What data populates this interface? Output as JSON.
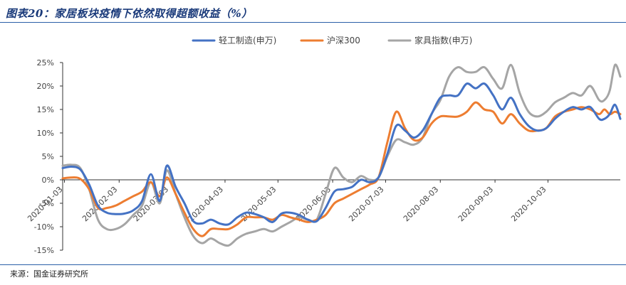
{
  "figure_title": "图表20：家居板块疫情下依然取得超额收益（%）",
  "source_note": "来源：国金证券研究所",
  "colors": {
    "rule": "#2b5fa8",
    "axis": "#333333",
    "title": "#1a3a7a"
  },
  "chart_data": {
    "type": "line",
    "title": "",
    "xlabel": "",
    "ylabel": "",
    "y_unit": "%",
    "ylim": [
      -15,
      25
    ],
    "y_ticks": [
      -15,
      -10,
      -5,
      0,
      5,
      10,
      15,
      20,
      25
    ],
    "y_tick_labels": [
      "-15%",
      "-10%",
      "-5%",
      "0%",
      "5%",
      "10%",
      "15%",
      "20%",
      "25%"
    ],
    "x_range": [
      "2020-01-02",
      "2020-11-13"
    ],
    "x_ticks": [
      "2020-01-03",
      "2020-02-03",
      "2020-03-03",
      "2020-04-03",
      "2020-05-03",
      "2020-06-03",
      "2020-07-03",
      "2020-08-03",
      "2020-09-03",
      "2020-10-03"
    ],
    "legend_position": "top",
    "grid": false,
    "series": [
      {
        "name": "轻工制造(申万)",
        "color": "#4472c4",
        "points": [
          [
            "2020-01-02",
            2.5
          ],
          [
            "2020-01-07",
            2.8
          ],
          [
            "2020-01-12",
            2.2
          ],
          [
            "2020-01-17",
            -1.0
          ],
          [
            "2020-01-22",
            -5.5
          ],
          [
            "2020-01-27",
            -7.0
          ],
          [
            "2020-02-01",
            -7.3
          ],
          [
            "2020-02-06",
            -7.2
          ],
          [
            "2020-02-11",
            -6.5
          ],
          [
            "2020-02-16",
            -4.5
          ],
          [
            "2020-02-21",
            1.2
          ],
          [
            "2020-02-26",
            -4.5
          ],
          [
            "2020-03-01",
            3.0
          ],
          [
            "2020-03-06",
            -1.5
          ],
          [
            "2020-03-11",
            -5.0
          ],
          [
            "2020-03-16",
            -8.8
          ],
          [
            "2020-03-21",
            -9.3
          ],
          [
            "2020-03-26",
            -8.5
          ],
          [
            "2020-03-31",
            -9.3
          ],
          [
            "2020-04-05",
            -9.5
          ],
          [
            "2020-04-10",
            -8.0
          ],
          [
            "2020-04-15",
            -7.0
          ],
          [
            "2020-04-20",
            -7.3
          ],
          [
            "2020-04-25",
            -8.0
          ],
          [
            "2020-04-30",
            -9.0
          ],
          [
            "2020-05-05",
            -7.2
          ],
          [
            "2020-05-10",
            -7.0
          ],
          [
            "2020-05-15",
            -7.5
          ],
          [
            "2020-05-20",
            -8.5
          ],
          [
            "2020-05-25",
            -8.8
          ],
          [
            "2020-05-30",
            -6.0
          ],
          [
            "2020-06-04",
            -2.5
          ],
          [
            "2020-06-09",
            -2.0
          ],
          [
            "2020-06-14",
            -1.5
          ],
          [
            "2020-06-19",
            0.0
          ],
          [
            "2020-06-24",
            -0.5
          ],
          [
            "2020-06-29",
            0.5
          ],
          [
            "2020-07-04",
            5.5
          ],
          [
            "2020-07-09",
            11.5
          ],
          [
            "2020-07-14",
            10.5
          ],
          [
            "2020-07-19",
            9.0
          ],
          [
            "2020-07-24",
            10.5
          ],
          [
            "2020-07-29",
            14.0
          ],
          [
            "2020-08-03",
            17.5
          ],
          [
            "2020-08-08",
            18.0
          ],
          [
            "2020-08-13",
            18.0
          ],
          [
            "2020-08-18",
            20.5
          ],
          [
            "2020-08-23",
            19.5
          ],
          [
            "2020-08-28",
            20.5
          ],
          [
            "2020-09-02",
            18.0
          ],
          [
            "2020-09-07",
            15.0
          ],
          [
            "2020-09-12",
            17.5
          ],
          [
            "2020-09-17",
            14.0
          ],
          [
            "2020-09-22",
            11.5
          ],
          [
            "2020-09-27",
            10.5
          ],
          [
            "2020-10-02",
            11.0
          ],
          [
            "2020-10-07",
            13.0
          ],
          [
            "2020-10-12",
            14.5
          ],
          [
            "2020-10-17",
            15.5
          ],
          [
            "2020-10-22",
            15.0
          ],
          [
            "2020-10-27",
            15.5
          ],
          [
            "2020-11-01",
            13.0
          ],
          [
            "2020-11-04",
            13.0
          ],
          [
            "2020-11-07",
            14.0
          ],
          [
            "2020-11-10",
            16.0
          ],
          [
            "2020-11-13",
            13.0
          ]
        ]
      },
      {
        "name": "沪深300",
        "color": "#ed7d31",
        "points": [
          [
            "2020-01-02",
            0.3
          ],
          [
            "2020-01-07",
            0.5
          ],
          [
            "2020-01-12",
            0.2
          ],
          [
            "2020-01-17",
            -2.0
          ],
          [
            "2020-01-22",
            -6.0
          ],
          [
            "2020-01-27",
            -6.0
          ],
          [
            "2020-02-01",
            -5.5
          ],
          [
            "2020-02-06",
            -4.5
          ],
          [
            "2020-02-11",
            -3.5
          ],
          [
            "2020-02-16",
            -2.5
          ],
          [
            "2020-02-21",
            -0.5
          ],
          [
            "2020-02-26",
            -3.5
          ],
          [
            "2020-03-01",
            0.5
          ],
          [
            "2020-03-06",
            -3.0
          ],
          [
            "2020-03-11",
            -7.0
          ],
          [
            "2020-03-16",
            -10.5
          ],
          [
            "2020-03-21",
            -12.0
          ],
          [
            "2020-03-26",
            -10.5
          ],
          [
            "2020-03-31",
            -10.5
          ],
          [
            "2020-04-05",
            -10.5
          ],
          [
            "2020-04-10",
            -9.5
          ],
          [
            "2020-04-15",
            -8.0
          ],
          [
            "2020-04-20",
            -8.0
          ],
          [
            "2020-04-25",
            -8.0
          ],
          [
            "2020-04-30",
            -8.5
          ],
          [
            "2020-05-05",
            -7.5
          ],
          [
            "2020-05-10",
            -8.0
          ],
          [
            "2020-05-15",
            -8.5
          ],
          [
            "2020-05-20",
            -9.0
          ],
          [
            "2020-05-25",
            -8.5
          ],
          [
            "2020-05-30",
            -7.5
          ],
          [
            "2020-06-04",
            -5.0
          ],
          [
            "2020-06-09",
            -4.0
          ],
          [
            "2020-06-14",
            -3.0
          ],
          [
            "2020-06-19",
            -2.0
          ],
          [
            "2020-06-24",
            -1.0
          ],
          [
            "2020-06-29",
            0.5
          ],
          [
            "2020-07-04",
            8.0
          ],
          [
            "2020-07-09",
            14.5
          ],
          [
            "2020-07-14",
            11.0
          ],
          [
            "2020-07-19",
            8.5
          ],
          [
            "2020-07-24",
            9.0
          ],
          [
            "2020-07-29",
            12.0
          ],
          [
            "2020-08-03",
            13.5
          ],
          [
            "2020-08-08",
            13.5
          ],
          [
            "2020-08-13",
            13.5
          ],
          [
            "2020-08-18",
            14.5
          ],
          [
            "2020-08-23",
            16.5
          ],
          [
            "2020-08-28",
            15.0
          ],
          [
            "2020-09-02",
            14.5
          ],
          [
            "2020-09-07",
            12.0
          ],
          [
            "2020-09-12",
            14.0
          ],
          [
            "2020-09-17",
            12.0
          ],
          [
            "2020-09-22",
            10.5
          ],
          [
            "2020-09-27",
            10.5
          ],
          [
            "2020-10-02",
            11.0
          ],
          [
            "2020-10-07",
            13.5
          ],
          [
            "2020-10-12",
            14.5
          ],
          [
            "2020-10-17",
            15.0
          ],
          [
            "2020-10-22",
            15.5
          ],
          [
            "2020-10-27",
            15.0
          ],
          [
            "2020-11-01",
            14.0
          ],
          [
            "2020-11-04",
            15.0
          ],
          [
            "2020-11-07",
            14.0
          ],
          [
            "2020-11-10",
            14.5
          ],
          [
            "2020-11-13",
            14.0
          ]
        ]
      },
      {
        "name": "家具指数(申万)",
        "color": "#a5a5a5",
        "points": [
          [
            "2020-01-02",
            3.0
          ],
          [
            "2020-01-07",
            3.2
          ],
          [
            "2020-01-12",
            2.5
          ],
          [
            "2020-01-17",
            -2.0
          ],
          [
            "2020-01-22",
            -8.5
          ],
          [
            "2020-01-27",
            -10.5
          ],
          [
            "2020-02-01",
            -10.5
          ],
          [
            "2020-02-06",
            -9.5
          ],
          [
            "2020-02-11",
            -7.5
          ],
          [
            "2020-02-16",
            -5.5
          ],
          [
            "2020-02-21",
            -0.5
          ],
          [
            "2020-02-26",
            -5.0
          ],
          [
            "2020-03-01",
            2.0
          ],
          [
            "2020-03-06",
            -3.0
          ],
          [
            "2020-03-11",
            -8.0
          ],
          [
            "2020-03-16",
            -12.0
          ],
          [
            "2020-03-21",
            -13.5
          ],
          [
            "2020-03-26",
            -12.5
          ],
          [
            "2020-03-31",
            -13.5
          ],
          [
            "2020-04-05",
            -14.0
          ],
          [
            "2020-04-10",
            -12.5
          ],
          [
            "2020-04-15",
            -11.5
          ],
          [
            "2020-04-20",
            -11.0
          ],
          [
            "2020-04-25",
            -10.5
          ],
          [
            "2020-04-30",
            -11.0
          ],
          [
            "2020-05-05",
            -10.0
          ],
          [
            "2020-05-10",
            -9.0
          ],
          [
            "2020-05-15",
            -8.0
          ],
          [
            "2020-05-20",
            -8.5
          ],
          [
            "2020-05-25",
            -8.5
          ],
          [
            "2020-05-30",
            -3.0
          ],
          [
            "2020-06-04",
            2.5
          ],
          [
            "2020-06-09",
            0.5
          ],
          [
            "2020-06-14",
            -0.5
          ],
          [
            "2020-06-19",
            0.8
          ],
          [
            "2020-06-24",
            0.0
          ],
          [
            "2020-06-29",
            0.5
          ],
          [
            "2020-07-04",
            5.0
          ],
          [
            "2020-07-09",
            8.5
          ],
          [
            "2020-07-14",
            8.0
          ],
          [
            "2020-07-19",
            7.5
          ],
          [
            "2020-07-24",
            9.0
          ],
          [
            "2020-07-29",
            14.0
          ],
          [
            "2020-08-03",
            17.0
          ],
          [
            "2020-08-08",
            22.0
          ],
          [
            "2020-08-13",
            24.0
          ],
          [
            "2020-08-18",
            23.0
          ],
          [
            "2020-08-23",
            23.0
          ],
          [
            "2020-08-28",
            24.0
          ],
          [
            "2020-09-02",
            21.5
          ],
          [
            "2020-09-07",
            19.5
          ],
          [
            "2020-09-12",
            24.5
          ],
          [
            "2020-09-17",
            18.5
          ],
          [
            "2020-09-22",
            14.5
          ],
          [
            "2020-09-27",
            13.5
          ],
          [
            "2020-10-02",
            14.5
          ],
          [
            "2020-10-07",
            16.5
          ],
          [
            "2020-10-12",
            17.5
          ],
          [
            "2020-10-17",
            18.5
          ],
          [
            "2020-10-22",
            18.0
          ],
          [
            "2020-10-27",
            20.0
          ],
          [
            "2020-11-01",
            17.0
          ],
          [
            "2020-11-04",
            17.0
          ],
          [
            "2020-11-07",
            19.0
          ],
          [
            "2020-11-10",
            24.5
          ],
          [
            "2020-11-13",
            22.0
          ]
        ]
      }
    ]
  }
}
